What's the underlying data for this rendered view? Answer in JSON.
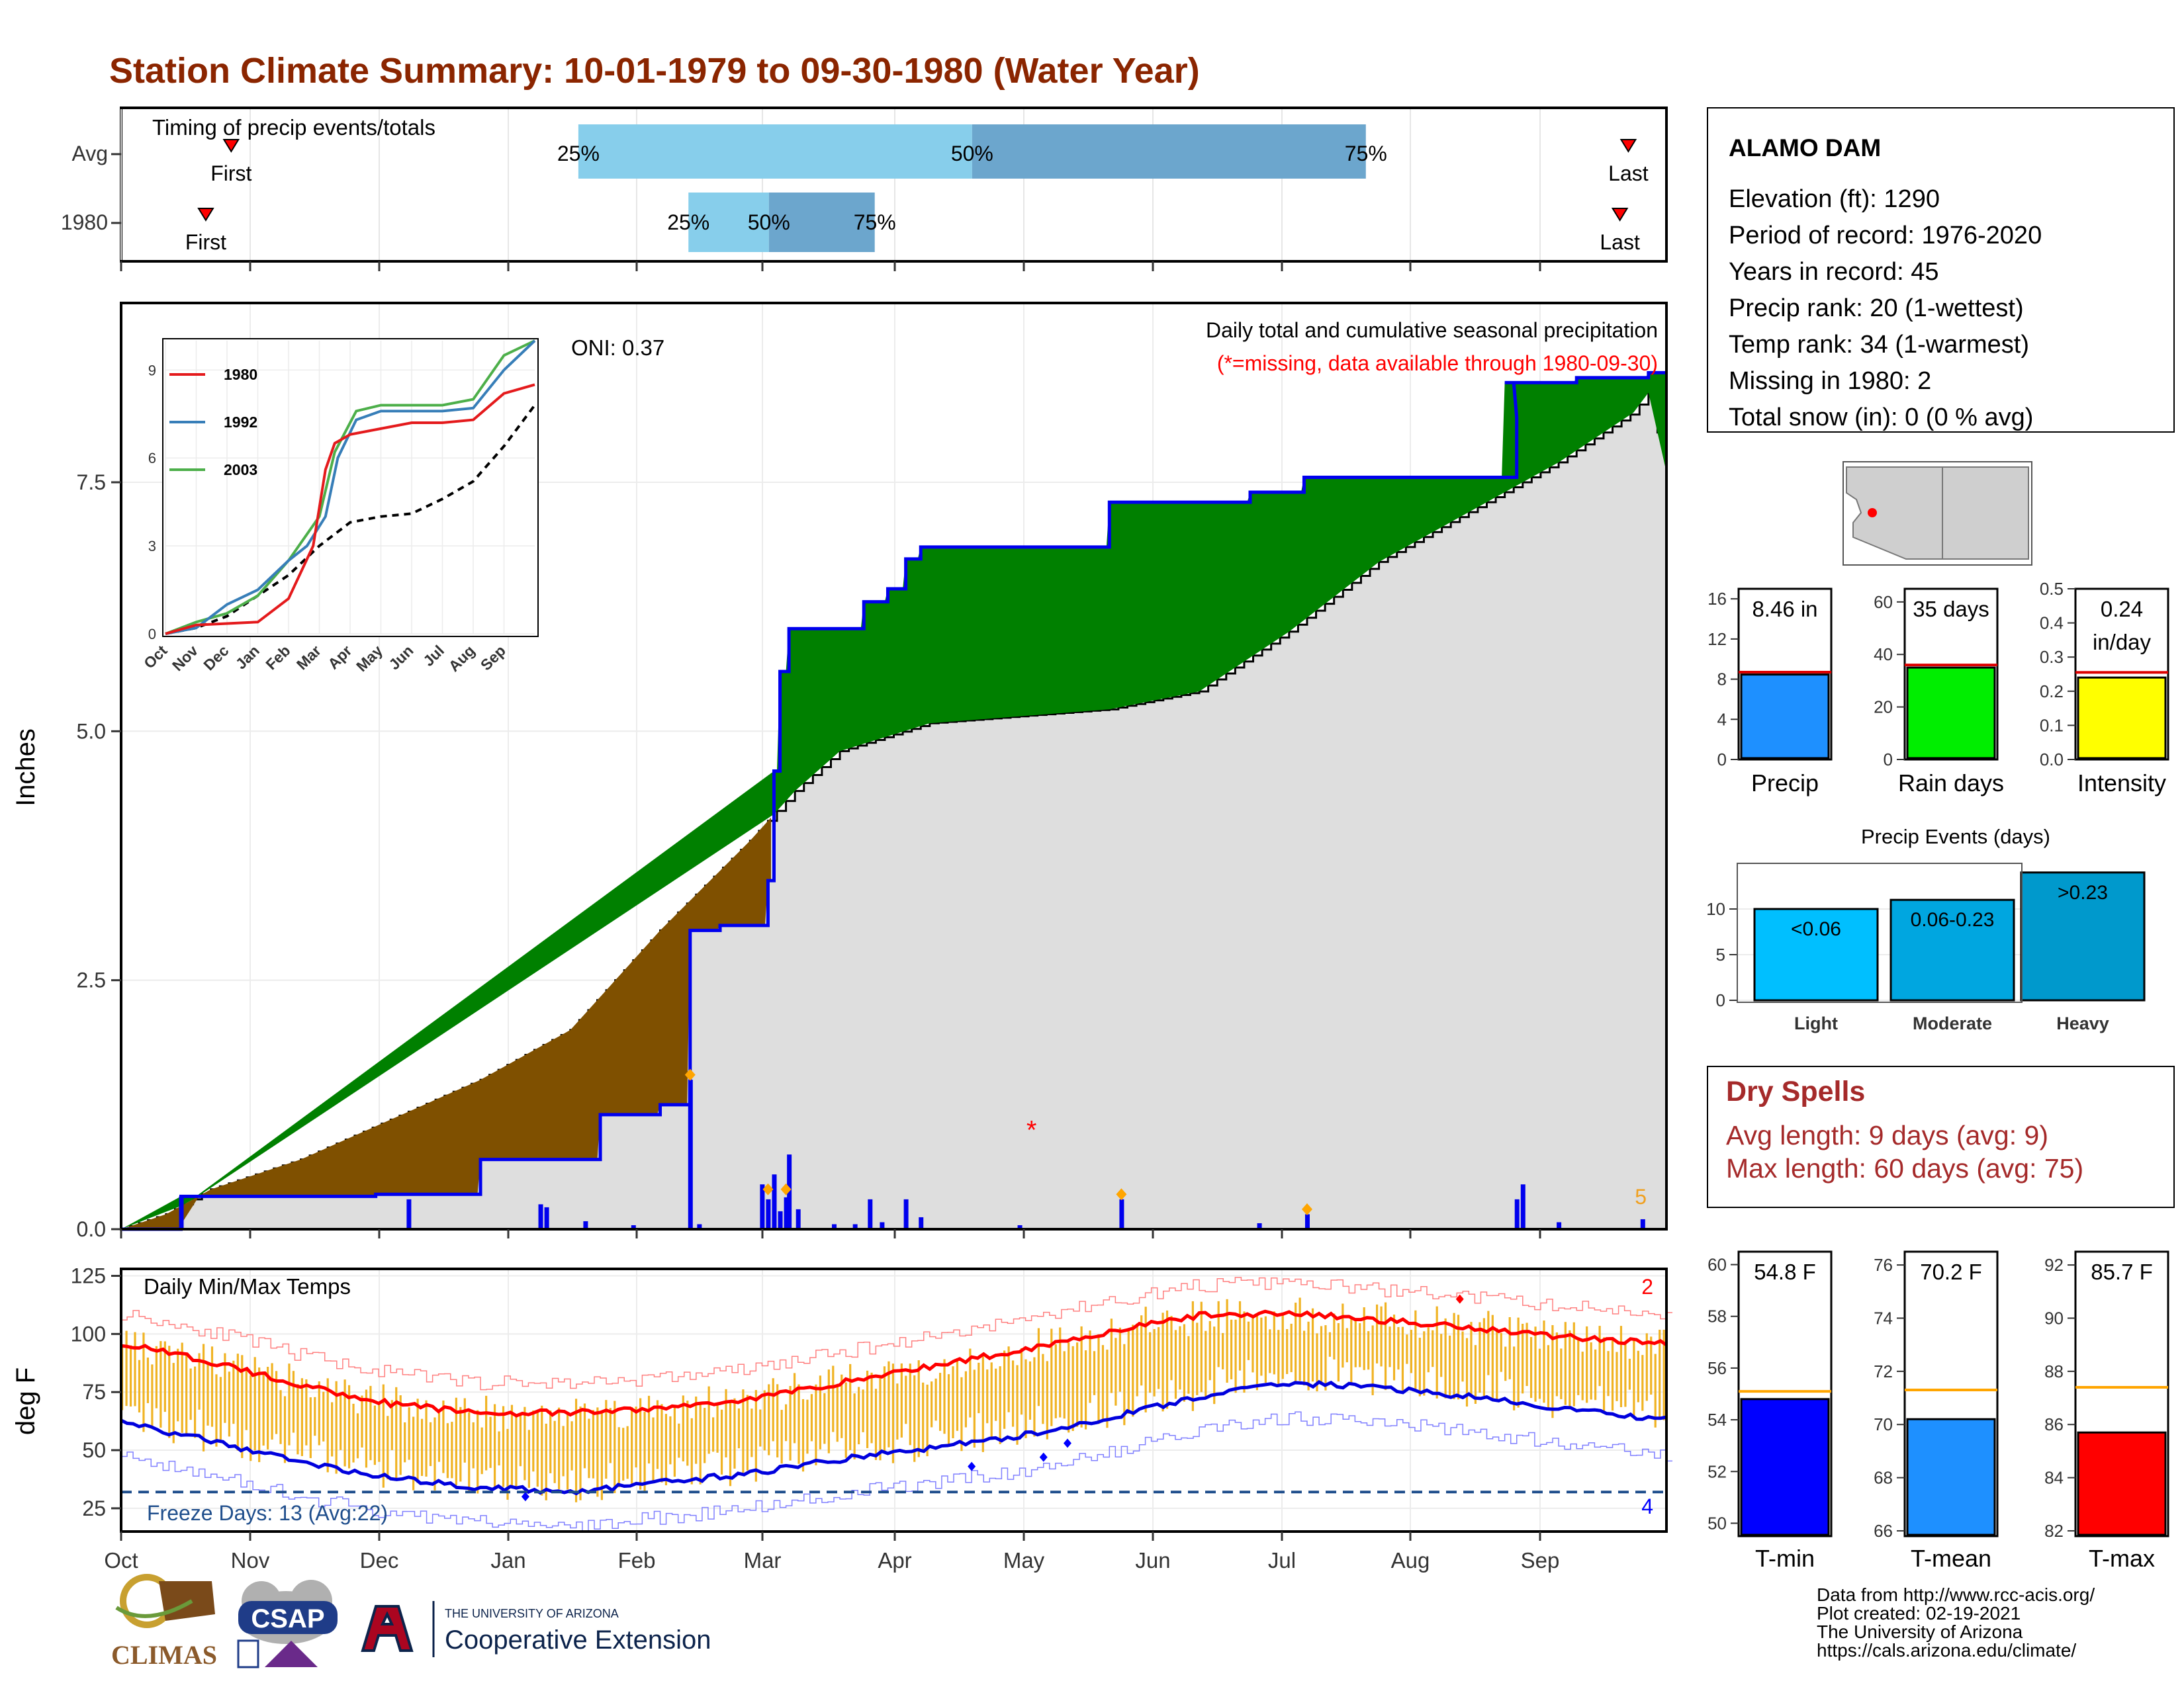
{
  "title": "Station Climate Summary: 10-01-1979 to 09-30-1980 (Water Year)",
  "months": [
    "Oct",
    "Nov",
    "Dec",
    "Jan",
    "Feb",
    "Mar",
    "Apr",
    "May",
    "Jun",
    "Jul",
    "Aug",
    "Sep"
  ],
  "colors": {
    "title": "#8b2500",
    "brown": "#7f5000",
    "green": "#008000",
    "grey": "#dedede",
    "blue": "#0000ee",
    "orange": "#f0b323",
    "red": "#ff0000",
    "light_blue": "#87ceeb",
    "mid_blue": "#6ca6cd"
  },
  "timing_panel": {
    "label": "Timing of precip events/totals",
    "rows": [
      "Avg",
      "1980"
    ],
    "first_label": "First",
    "last_label": "Last",
    "pct_labels": [
      "25%",
      "50%",
      "75%"
    ],
    "chart_data": {
      "type": "bar",
      "x_unit": "day of water year",
      "xlim": [
        0,
        365
      ],
      "avg": {
        "first": 26,
        "p25": 108,
        "p50": 201,
        "p75": 294,
        "last": 356
      },
      "y1980": {
        "first": 20,
        "p25": 134,
        "p50": 153,
        "p75": 178,
        "last": 354
      }
    }
  },
  "precip_panel": {
    "ylabel": "Inches",
    "yticks": [
      "0.0",
      "2.5",
      "5.0",
      "7.5"
    ],
    "oni": "ONI: 0.37",
    "note1": "Daily total and cumulative seasonal precipitation",
    "note2": "(*=missing, data available through 1980-09-30)",
    "corner_count": "5",
    "chart_data": {
      "type": "area",
      "ylim": [
        0,
        9.3
      ],
      "avg_cumulative": [
        [
          0,
          0
        ],
        [
          15,
          0.15
        ],
        [
          30,
          0.4
        ],
        [
          60,
          0.7
        ],
        [
          90,
          1.1
        ],
        [
          120,
          1.5
        ],
        [
          150,
          2.0
        ],
        [
          165,
          2.5
        ],
        [
          180,
          3.0
        ],
        [
          210,
          3.9
        ],
        [
          225,
          4.4
        ],
        [
          240,
          4.8
        ],
        [
          270,
          5.08
        ],
        [
          300,
          5.15
        ],
        [
          330,
          5.22
        ],
        [
          360,
          5.4
        ],
        [
          390,
          6.0
        ],
        [
          420,
          6.7
        ],
        [
          450,
          7.2
        ],
        [
          480,
          7.7
        ],
        [
          505,
          8.2
        ],
        [
          510,
          8.4
        ],
        [
          516,
          7.6
        ]
      ],
      "obs_cumulative": [
        [
          0,
          0
        ],
        [
          20,
          0
        ],
        [
          20,
          0.33
        ],
        [
          85,
          0.33
        ],
        [
          85,
          0.35
        ],
        [
          120,
          0.35
        ],
        [
          120,
          0.7
        ],
        [
          160,
          0.7
        ],
        [
          160,
          1.15
        ],
        [
          180,
          1.15
        ],
        [
          180,
          1.25
        ],
        [
          190,
          1.25
        ],
        [
          190,
          3.0
        ],
        [
          200,
          3.0
        ],
        [
          200,
          3.05
        ],
        [
          216,
          3.05
        ],
        [
          216,
          3.5
        ],
        [
          218,
          3.5
        ],
        [
          218,
          4.6
        ],
        [
          220,
          4.6
        ],
        [
          220,
          5.6
        ],
        [
          223,
          5.6
        ],
        [
          223,
          6.03
        ],
        [
          248,
          6.03
        ],
        [
          248,
          6.3
        ],
        [
          256,
          6.3
        ],
        [
          256,
          6.43
        ],
        [
          262,
          6.43
        ],
        [
          262,
          6.73
        ],
        [
          267,
          6.73
        ],
        [
          267,
          6.85
        ],
        [
          330,
          6.85
        ],
        [
          330,
          7.3
        ],
        [
          377,
          7.3
        ],
        [
          377,
          7.4
        ],
        [
          395,
          7.4
        ],
        [
          395,
          7.55
        ],
        [
          466,
          7.55
        ],
        [
          466,
          8.15
        ],
        [
          465,
          8.5
        ],
        [
          462,
          8.5
        ],
        [
          486,
          8.5
        ],
        [
          486,
          8.55
        ],
        [
          510,
          8.55
        ],
        [
          510,
          8.6
        ],
        [
          516,
          8.6
        ]
      ],
      "daily_bars": [
        [
          20,
          0.33
        ],
        [
          96,
          0.3
        ],
        [
          140,
          0.25
        ],
        [
          142,
          0.22
        ],
        [
          155,
          0.08
        ],
        [
          171,
          0.04
        ],
        [
          190,
          1.5
        ],
        [
          193,
          0.05
        ],
        [
          214,
          0.45
        ],
        [
          216,
          0.3
        ],
        [
          218,
          0.55
        ],
        [
          220,
          0.18
        ],
        [
          222,
          0.32
        ],
        [
          223,
          0.75
        ],
        [
          226,
          0.2
        ],
        [
          238,
          0.05
        ],
        [
          245,
          0.05
        ],
        [
          250,
          0.3
        ],
        [
          254,
          0.07
        ],
        [
          262,
          0.3
        ],
        [
          267,
          0.12
        ],
        [
          300,
          0.04
        ],
        [
          334,
          0.3
        ],
        [
          380,
          0.06
        ],
        [
          396,
          0.15
        ],
        [
          466,
          0.3
        ],
        [
          468,
          0.45
        ],
        [
          480,
          0.07
        ],
        [
          508,
          0.1
        ]
      ],
      "missing_marker": [
        304,
        1.0
      ]
    }
  },
  "inset": {
    "series": [
      "1980",
      "1992",
      "2003"
    ],
    "yticks": [
      "0",
      "3",
      "6",
      "9"
    ],
    "months": [
      "Oct",
      "Nov",
      "Dec",
      "Jan",
      "Feb",
      "Mar",
      "Apr",
      "May",
      "Jun",
      "Jul",
      "Aug",
      "Sep"
    ],
    "chart_data": {
      "type": "line",
      "ylim": [
        0,
        10
      ],
      "s1980": [
        [
          0,
          0
        ],
        [
          1,
          0.3
        ],
        [
          2,
          0.35
        ],
        [
          3,
          0.4
        ],
        [
          4,
          1.2
        ],
        [
          4.8,
          3.0
        ],
        [
          5.2,
          5.6
        ],
        [
          5.5,
          6.5
        ],
        [
          6,
          6.8
        ],
        [
          7,
          7.0
        ],
        [
          8,
          7.2
        ],
        [
          9,
          7.2
        ],
        [
          10,
          7.3
        ],
        [
          11,
          8.2
        ],
        [
          12,
          8.5
        ]
      ],
      "s1992": [
        [
          0,
          0
        ],
        [
          1,
          0.2
        ],
        [
          2,
          1.0
        ],
        [
          3,
          1.5
        ],
        [
          4,
          2.5
        ],
        [
          4.6,
          3.0
        ],
        [
          5.2,
          4.0
        ],
        [
          5.6,
          6.0
        ],
        [
          6.2,
          7.3
        ],
        [
          7,
          7.6
        ],
        [
          8,
          7.6
        ],
        [
          9,
          7.6
        ],
        [
          10,
          7.7
        ],
        [
          11,
          9.0
        ],
        [
          12,
          11.0
        ]
      ],
      "s2003": [
        [
          0,
          0
        ],
        [
          1,
          0.4
        ],
        [
          2,
          0.7
        ],
        [
          3,
          1.3
        ],
        [
          4,
          2.5
        ],
        [
          5,
          4.0
        ],
        [
          5.5,
          6.2
        ],
        [
          6.2,
          7.6
        ],
        [
          7,
          7.8
        ],
        [
          8,
          7.8
        ],
        [
          9,
          7.8
        ],
        [
          10,
          8.0
        ],
        [
          11,
          9.5
        ],
        [
          12,
          10.5
        ]
      ],
      "avg": [
        [
          0,
          0
        ],
        [
          1,
          0.2
        ],
        [
          2,
          0.6
        ],
        [
          3,
          1.3
        ],
        [
          4,
          2.0
        ],
        [
          5,
          3.0
        ],
        [
          6,
          3.8
        ],
        [
          7,
          4.0
        ],
        [
          8,
          4.1
        ],
        [
          9,
          4.6
        ],
        [
          10,
          5.2
        ],
        [
          11,
          6.4
        ],
        [
          12,
          7.8
        ]
      ]
    }
  },
  "temp_panel": {
    "ylabel": "deg F",
    "label": "Daily Min/Max Temps",
    "yticks": [
      "25",
      "50",
      "75",
      "100",
      "125"
    ],
    "freeze": "Freeze Days: 13 (Avg:22)",
    "count_top": "2",
    "count_bottom": "4",
    "chart_data": {
      "type": "line",
      "ylim": [
        15,
        128
      ],
      "avg_max": [
        [
          0,
          96
        ],
        [
          30,
          88
        ],
        [
          60,
          78
        ],
        [
          90,
          70
        ],
        [
          120,
          66
        ],
        [
          150,
          66
        ],
        [
          180,
          68
        ],
        [
          210,
          72
        ],
        [
          240,
          79
        ],
        [
          270,
          86
        ],
        [
          300,
          93
        ],
        [
          330,
          101
        ],
        [
          360,
          108
        ],
        [
          390,
          109
        ],
        [
          420,
          106
        ],
        [
          450,
          103
        ],
        [
          480,
          99
        ],
        [
          516,
          96
        ]
      ],
      "avg_min": [
        [
          0,
          62
        ],
        [
          30,
          54
        ],
        [
          60,
          45
        ],
        [
          90,
          38
        ],
        [
          120,
          34
        ],
        [
          150,
          32
        ],
        [
          180,
          36
        ],
        [
          210,
          40
        ],
        [
          240,
          46
        ],
        [
          270,
          51
        ],
        [
          300,
          56
        ],
        [
          330,
          64
        ],
        [
          360,
          73
        ],
        [
          390,
          79
        ],
        [
          420,
          77
        ],
        [
          450,
          73
        ],
        [
          480,
          68
        ],
        [
          516,
          63
        ]
      ],
      "freeze_line": 32
    }
  },
  "station_box": {
    "name": "ALAMO DAM",
    "lines": [
      "Elevation (ft): 1290",
      "Period of record: 1976-2020",
      "Years in record: 45",
      "Precip rank: 20 (1-wettest)",
      "Temp rank: 34 (1-warmest)",
      "Missing in 1980: 2",
      "Total snow (in): 0 (0 % avg)"
    ]
  },
  "precip_gauges": [
    {
      "label": "Precip",
      "value_text": "8.46 in",
      "value": 8.46,
      "avg": 8.7,
      "max": 17,
      "ticks": [
        "0",
        "4",
        "8",
        "12",
        "16"
      ],
      "color": "#1e90ff"
    },
    {
      "label": "Rain days",
      "value_text": "35 days",
      "value": 35,
      "avg": 36,
      "max": 65,
      "ticks": [
        "0",
        "20",
        "40",
        "60"
      ],
      "color": "#00ee00"
    },
    {
      "label": "Intensity",
      "value_text": "0.24",
      "value_text2": "in/day",
      "value": 0.24,
      "avg": 0.255,
      "max": 0.5,
      "ticks": [
        "0.0",
        "0.1",
        "0.2",
        "0.3",
        "0.4",
        "0.5"
      ],
      "color": "#ffff00"
    }
  ],
  "events": {
    "title": "Precip Events (days)",
    "ticks": [
      "0",
      "5",
      "10"
    ],
    "chart_data": {
      "type": "bar",
      "categories": [
        "Light",
        "Moderate",
        "Heavy"
      ],
      "labels": [
        "<0.06",
        "0.06-0.23",
        ">0.23"
      ],
      "values": [
        10,
        11,
        14
      ],
      "ylim": [
        0,
        15
      ],
      "colors": [
        "#00bfff",
        "#00a6e0",
        "#0099cc"
      ]
    }
  },
  "dry_spells": {
    "title": "Dry Spells",
    "line1": "Avg length: 9 days (avg: 9)",
    "line2": "Max length: 60 days (avg: 75)"
  },
  "temp_gauges": [
    {
      "label": "T-min",
      "value_text": "54.8 F",
      "value": 54.8,
      "avg": 55.1,
      "min": 49.5,
      "max": 60.5,
      "ticks": [
        "50",
        "52",
        "54",
        "56",
        "58",
        "60"
      ],
      "color": "#0000ff"
    },
    {
      "label": "T-mean",
      "value_text": "70.2 F",
      "value": 70.2,
      "avg": 71.3,
      "min": 65.8,
      "max": 76.5,
      "ticks": [
        "66",
        "68",
        "70",
        "72",
        "74",
        "76"
      ],
      "color": "#1e90ff"
    },
    {
      "label": "T-max",
      "value_text": "85.7 F",
      "value": 85.7,
      "avg": 87.4,
      "min": 81.8,
      "max": 92.5,
      "ticks": [
        "82",
        "84",
        "86",
        "88",
        "90",
        "92"
      ],
      "color": "#ff0000"
    }
  ],
  "footer": {
    "logo1": "CLIMAS",
    "logo2": "CSAP",
    "logo3_top": "THE UNIVERSITY OF ARIZONA",
    "logo3_main": "Cooperative Extension",
    "credits": [
      "Data from http://www.rcc-acis.org/",
      "Plot created: 02-19-2021",
      "The University of Arizona",
      "https://cals.arizona.edu/climate/"
    ]
  }
}
